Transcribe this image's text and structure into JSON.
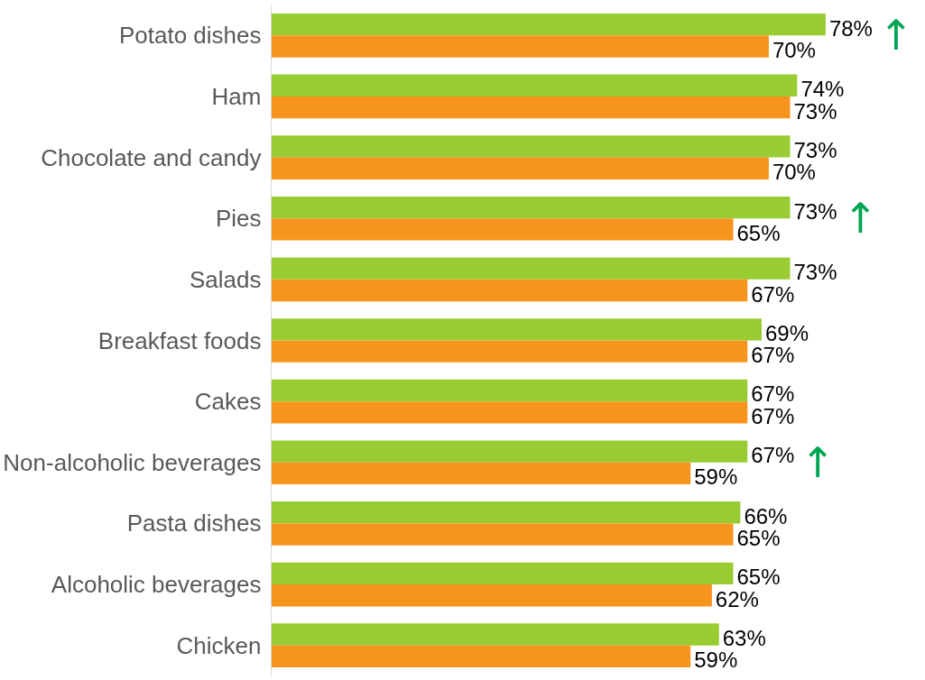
{
  "chart_data": {
    "type": "bar",
    "orientation": "horizontal",
    "categories": [
      "Potato dishes",
      "Ham",
      "Chocolate and candy",
      "Pies",
      "Salads",
      "Breakfast foods",
      "Cakes",
      "Non-alcoholic beverages",
      "Pasta dishes",
      "Alcoholic beverages",
      "Chicken"
    ],
    "series": [
      {
        "color": "#99cc33",
        "values": [
          78,
          74,
          73,
          73,
          73,
          69,
          67,
          67,
          66,
          65,
          63
        ],
        "value_labels": [
          "78%",
          "74%",
          "73%",
          "73%",
          "73%",
          "69%",
          "67%",
          "67%",
          "66%",
          "65%",
          "63%"
        ]
      },
      {
        "color": "#f7941d",
        "values": [
          70,
          73,
          70,
          65,
          67,
          67,
          67,
          59,
          65,
          62,
          59
        ],
        "value_labels": [
          "70%",
          "73%",
          "70%",
          "65%",
          "67%",
          "67%",
          "67%",
          "59%",
          "65%",
          "62%",
          "59%"
        ]
      }
    ],
    "annotations": [
      {
        "text": "↑",
        "x": 78,
        "y": "Potato dishes"
      },
      {
        "text": "↑",
        "x": 73,
        "y": "Pies"
      },
      {
        "text": "↑",
        "x": 67,
        "y": "Non-alcoholic beverages"
      }
    ],
    "tick_labels": "y",
    "grid": false
  }
}
